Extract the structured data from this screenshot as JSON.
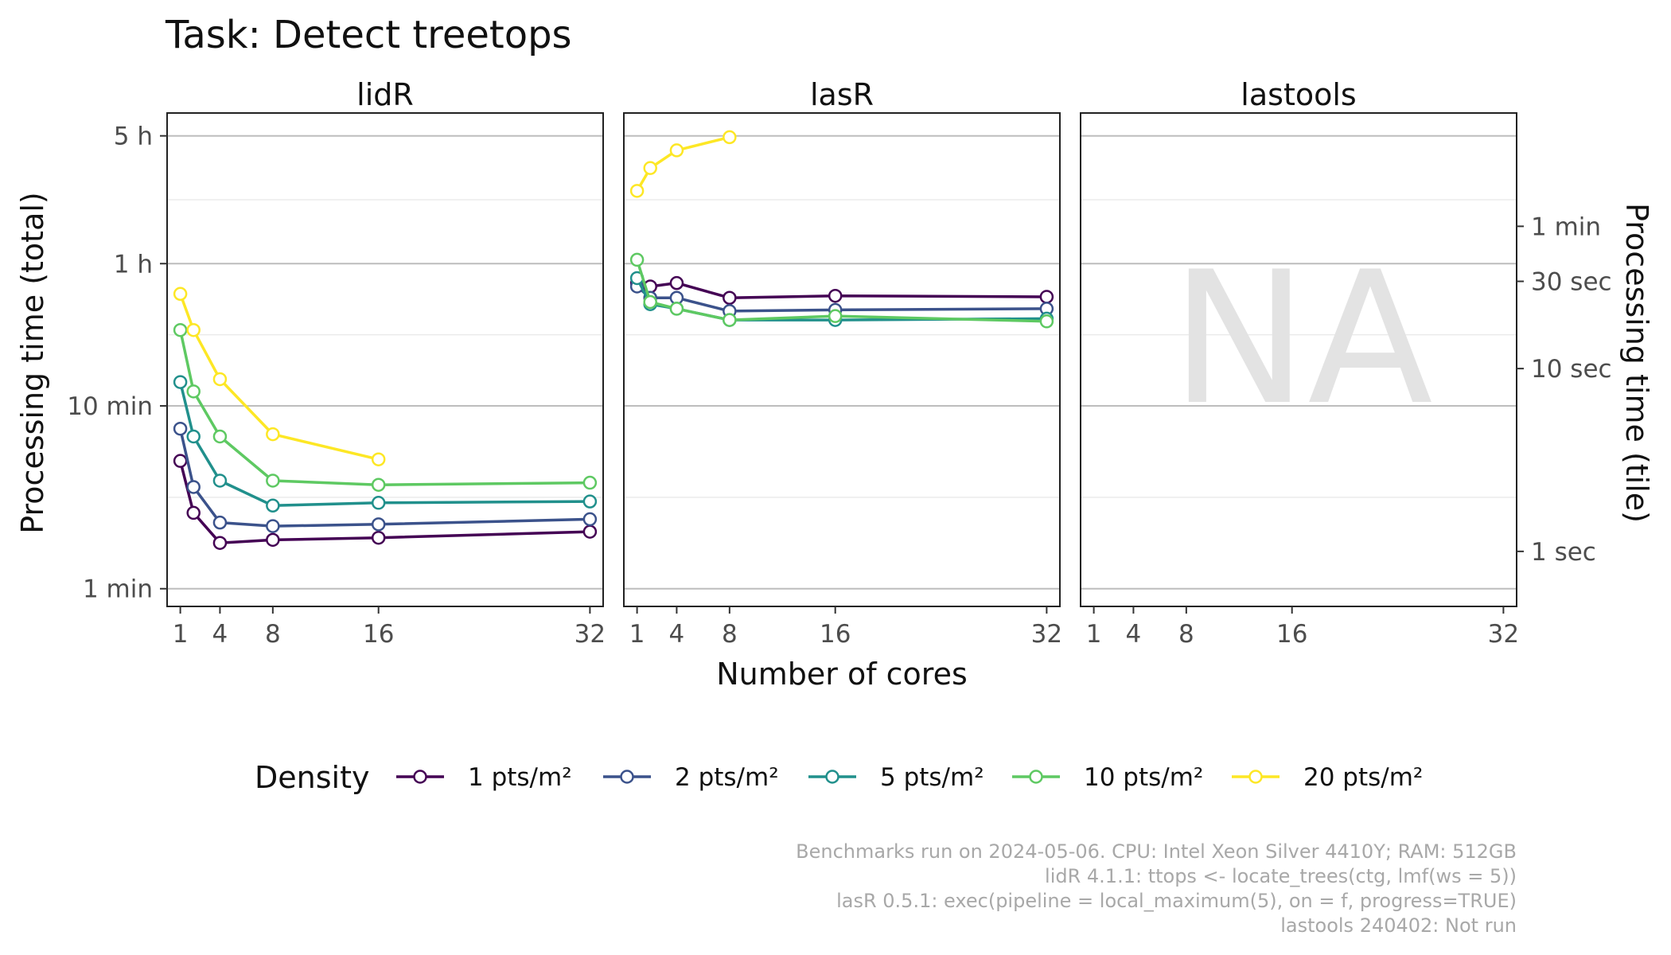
{
  "chart_data": {
    "type": "line",
    "title": "Task: Detect treetops",
    "xlabel": "Number of cores",
    "ylabel_left": "Processing time (total)",
    "ylabel_right": "Processing time (tile)",
    "x_ticks": [
      1,
      4,
      8,
      16,
      32
    ],
    "x_range": [
      0,
      33
    ],
    "y_scale": "log",
    "y_unit": "minutes",
    "y_range_minutes": [
      0.8,
      6.0
    ],
    "left_y_ticks": [
      {
        "label": "1 min",
        "minutes": 1
      },
      {
        "label": "10 min",
        "minutes": 10
      },
      {
        "label": "1 h",
        "minutes": 60
      },
      {
        "label": "5 h",
        "minutes": 300
      }
    ],
    "right_y_ticks": [
      {
        "label": "1 sec",
        "minutes": 1.6
      },
      {
        "label": "10 sec",
        "minutes": 16
      },
      {
        "label": "30 sec",
        "minutes": 48
      },
      {
        "label": "1 min",
        "minutes": 96
      }
    ],
    "grid": true,
    "legend": {
      "title": "Density",
      "placement": "bottom",
      "entries": [
        "1 pts/m²",
        "2 pts/m²",
        "5 pts/m²",
        "10 pts/m²",
        "20 pts/m²"
      ],
      "colors": [
        "#440154",
        "#3b528b",
        "#21908c",
        "#5ec962",
        "#fde725"
      ]
    },
    "panels": [
      {
        "name": "lidR",
        "series": [
          {
            "name": "1 pts/m²",
            "x": [
              1,
              2,
              4,
              8,
              16,
              32
            ],
            "y": [
              5.0,
              2.6,
              1.78,
              1.85,
              1.9,
              2.05
            ]
          },
          {
            "name": "2 pts/m²",
            "x": [
              1,
              2,
              4,
              8,
              16,
              32
            ],
            "y": [
              7.5,
              3.6,
              2.3,
              2.2,
              2.25,
              2.4
            ]
          },
          {
            "name": "5 pts/m²",
            "x": [
              1,
              2,
              4,
              8,
              16,
              32
            ],
            "y": [
              13.5,
              6.8,
              3.9,
              2.85,
              2.95,
              3.0
            ]
          },
          {
            "name": "10 pts/m²",
            "x": [
              1,
              2,
              4,
              8,
              16,
              32
            ],
            "y": [
              26,
              12,
              6.8,
              3.9,
              3.7,
              3.8
            ]
          },
          {
            "name": "20 pts/m²",
            "x": [
              1,
              2,
              4,
              8,
              16
            ],
            "y": [
              41,
              26,
              14,
              7.0,
              5.1
            ]
          }
        ]
      },
      {
        "name": "lasR",
        "series": [
          {
            "name": "1 pts/m²",
            "x": [
              1,
              2,
              4,
              8,
              16,
              32
            ],
            "y": [
              47,
              45,
              47,
              39,
              40,
              39.5
            ]
          },
          {
            "name": "2 pts/m²",
            "x": [
              1,
              2,
              4,
              8,
              16,
              32
            ],
            "y": [
              45,
              39,
              39,
              33,
              33.5,
              34
            ]
          },
          {
            "name": "5 pts/m²",
            "x": [
              1,
              2,
              4,
              8,
              16,
              32
            ],
            "y": [
              50,
              36,
              34,
              29.5,
              29.5,
              30
            ]
          },
          {
            "name": "10 pts/m²",
            "x": [
              1,
              2,
              4,
              8,
              16,
              32
            ],
            "y": [
              63,
              37,
              34,
              29.5,
              31,
              29
            ]
          },
          {
            "name": "20 pts/m²",
            "x": [
              1,
              2,
              4,
              8
            ],
            "y": [
              150,
              200,
              250,
              295
            ]
          }
        ]
      },
      {
        "name": "lastools",
        "series": [],
        "annotation": "NA"
      }
    ]
  },
  "caption": {
    "lines": [
      "Benchmarks run on 2024-05-06. CPU: Intel Xeon Silver 4410Y; RAM: 512GB",
      "lidR 4.1.1: ttops <- locate_trees(ctg, lmf(ws = 5))",
      "lasR 0.5.1: exec(pipeline = local_maximum(5), on = f, progress=TRUE)",
      "lastools 240402: Not run"
    ]
  }
}
